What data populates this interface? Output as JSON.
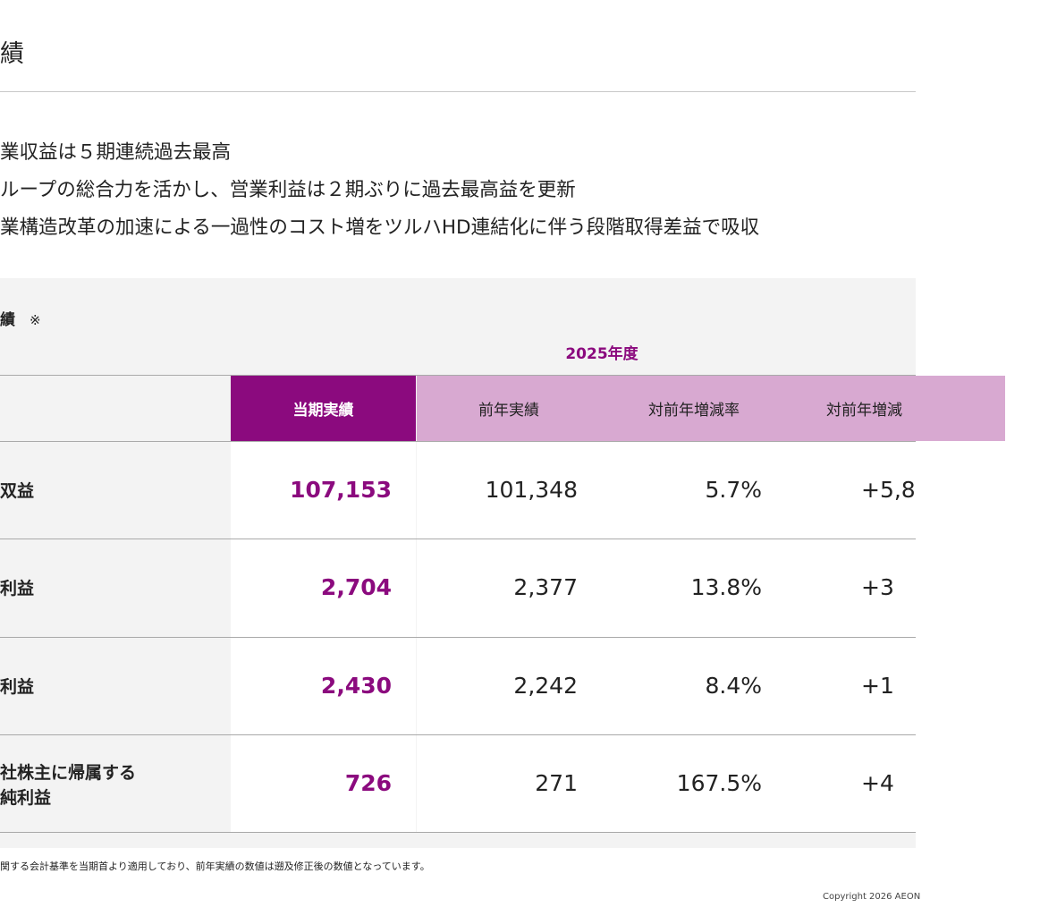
{
  "slide": {
    "title": "績",
    "bullets": [
      "業収益は５期連続過去最高",
      "ループの総合力を活かし、営業利益は２期ぶりに過去最高益を更新",
      "業構造改革の加速による一過性のコスト増をツルハHD連結化に伴う段階取得差益で吸収"
    ]
  },
  "table": {
    "title": "績",
    "note_mark": "※",
    "period": "2025年度",
    "headers": {
      "current": "当期実績",
      "prev": "前年実績",
      "rate": "対前年増減率",
      "diff": "対前年増減"
    },
    "rows": [
      {
        "label_lines": [
          "双益"
        ],
        "current": "107,153",
        "prev": "101,348",
        "rate": "5.7%",
        "diff": "+5,8"
      },
      {
        "label_lines": [
          "利益"
        ],
        "current": "2,704",
        "prev": "2,377",
        "rate": "13.8%",
        "diff": "+3"
      },
      {
        "label_lines": [
          "利益"
        ],
        "current": "2,430",
        "prev": "2,242",
        "rate": "8.4%",
        "diff": "+1"
      },
      {
        "label_lines": [
          "社株主に帰属する",
          "純利益"
        ],
        "current": "726",
        "prev": "271",
        "rate": "167.5%",
        "diff": "+4"
      }
    ]
  },
  "footnote": "関する会計基準を当期首より適用しており、前年実績の数値は遡及修正後の数値となっています。",
  "copyright": "Copyright 2026 AEON",
  "colors": {
    "accent": "#8b0a7e",
    "header_light": "#d8a9d1",
    "panel_bg": "#f3f3f3"
  }
}
